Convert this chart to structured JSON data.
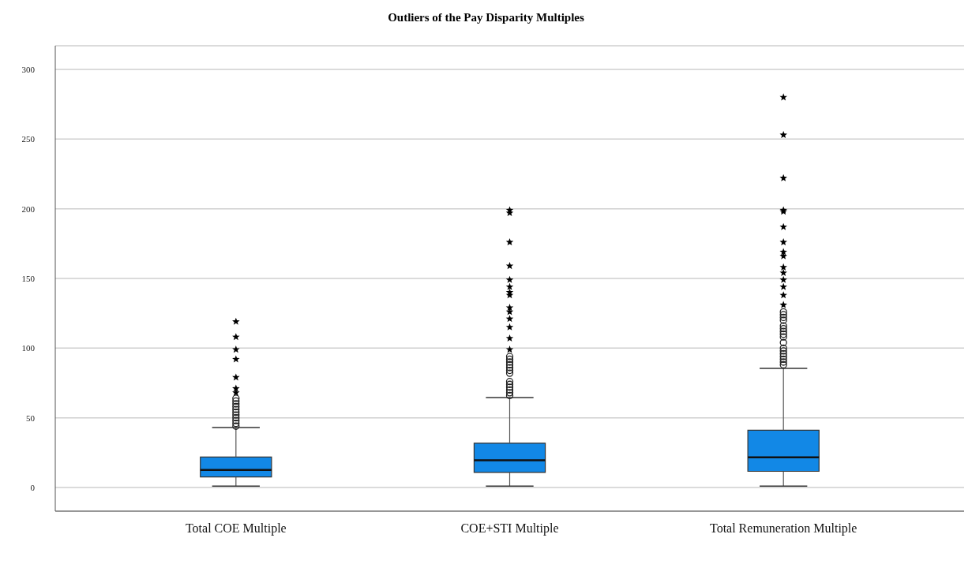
{
  "chart_data": {
    "type": "box",
    "title": "Outliers of the Pay Disparity Multiples",
    "categories": [
      "Total COE Multiple",
      "COE+STI Multiple",
      "Total Remuneration Multiple"
    ],
    "color": "#1288e6",
    "boxes": [
      {
        "low": 1,
        "q1": 7.5,
        "median": 12.6,
        "q3": 21.8,
        "high": 43,
        "outliers": [
          44,
          46,
          48,
          50,
          52,
          54,
          56,
          58,
          60,
          62,
          64
        ]
      },
      {
        "low": 1,
        "q1": 10.8,
        "median": 19.5,
        "q3": 31.8,
        "high": 64.5,
        "outliers": [
          66,
          68,
          70,
          72,
          74,
          76,
          82,
          84,
          86,
          88,
          90,
          92,
          94
        ]
      },
      {
        "low": 1,
        "q1": 11.6,
        "median": 21.7,
        "q3": 41.1,
        "high": 85.4,
        "outliers": [
          88,
          90,
          92,
          94,
          96,
          98,
          100,
          104,
          108,
          110,
          112,
          114,
          116,
          120,
          122,
          124,
          126
        ]
      }
    ],
    "series": [
      {
        "type": "scatter",
        "marker": "star",
        "color": "#000000",
        "x": [
          "Total COE Multiple",
          "Total COE Multiple",
          "Total COE Multiple",
          "Total COE Multiple",
          "Total COE Multiple",
          "Total COE Multiple",
          "Total COE Multiple",
          "COE+STI Multiple",
          "COE+STI Multiple",
          "COE+STI Multiple",
          "COE+STI Multiple",
          "COE+STI Multiple",
          "COE+STI Multiple",
          "COE+STI Multiple",
          "COE+STI Multiple",
          "COE+STI Multiple",
          "COE+STI Multiple",
          "COE+STI Multiple",
          "COE+STI Multiple",
          "COE+STI Multiple",
          "COE+STI Multiple",
          "Total Remuneration Multiple",
          "Total Remuneration Multiple",
          "Total Remuneration Multiple",
          "Total Remuneration Multiple",
          "Total Remuneration Multiple",
          "Total Remuneration Multiple",
          "Total Remuneration Multiple",
          "Total Remuneration Multiple",
          "Total Remuneration Multiple",
          "Total Remuneration Multiple",
          "Total Remuneration Multiple",
          "Total Remuneration Multiple",
          "Total Remuneration Multiple",
          "Total Remuneration Multiple",
          "Total Remuneration Multiple"
        ],
        "values": [
          68,
          71,
          79,
          92,
          99,
          108,
          119,
          99,
          107,
          115,
          121,
          126,
          129,
          138,
          140,
          144,
          149,
          159,
          176,
          197,
          199,
          131,
          138,
          144,
          149,
          154,
          158,
          166,
          169,
          176,
          187,
          198,
          199,
          222,
          253,
          280
        ]
      }
    ],
    "ylim": [
      -17,
      317
    ],
    "yticks": [
      0,
      50,
      100,
      150,
      200,
      250,
      300
    ],
    "grid": "y"
  }
}
